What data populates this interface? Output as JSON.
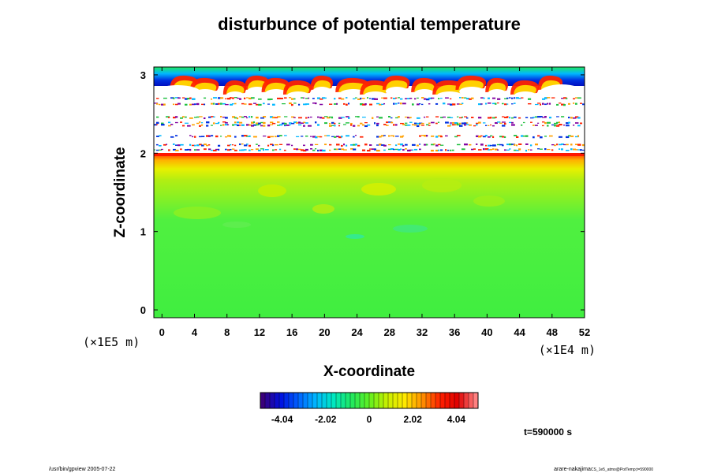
{
  "chart_data": {
    "type": "heatmap",
    "title": "disturbunce of potential temperature",
    "xlabel": "X-coordinate",
    "ylabel": "Z-coordinate",
    "x_unit": "(×1E4 m)",
    "y_unit": "(×1E5 m)",
    "xlim": [
      -1,
      52
    ],
    "ylim": [
      -0.1,
      3.1
    ],
    "x_ticks": [
      0,
      4,
      8,
      12,
      16,
      20,
      24,
      28,
      32,
      36,
      40,
      44,
      48,
      52
    ],
    "y_ticks": [
      0,
      1,
      2,
      3
    ],
    "colorbar": {
      "ticks": [
        "-4.04",
        "-2.02",
        "0",
        "2.02",
        "4.04"
      ],
      "range": [
        -5.05,
        5.05
      ],
      "colors": [
        "#3a007a",
        "#0010e0",
        "#0060ff",
        "#00b8ff",
        "#00e8c0",
        "#20e860",
        "#60f020",
        "#c8f000",
        "#ffe800",
        "#ff9000",
        "#ff2000",
        "#e00000",
        "#ff8080"
      ]
    },
    "regions": [
      {
        "z_range": [
          0,
          1.6
        ],
        "value": 0.1
      },
      {
        "z_range": [
          1.6,
          1.9
        ],
        "value": 1.2
      },
      {
        "z_range": [
          1.9,
          2.0
        ],
        "value": 4.0
      },
      {
        "z_range": [
          2.0,
          2.75
        ],
        "value": null
      },
      {
        "z_range": [
          2.75,
          3.1
        ],
        "value": -3.5
      }
    ],
    "time_label": "t=590000 s"
  },
  "footer": {
    "left": "/usr/bin/gpview 2005-07-22",
    "right_main": "arare-nakajima",
    "right_small": "CS_1e5_atmo@PotTemp;t=590000"
  }
}
